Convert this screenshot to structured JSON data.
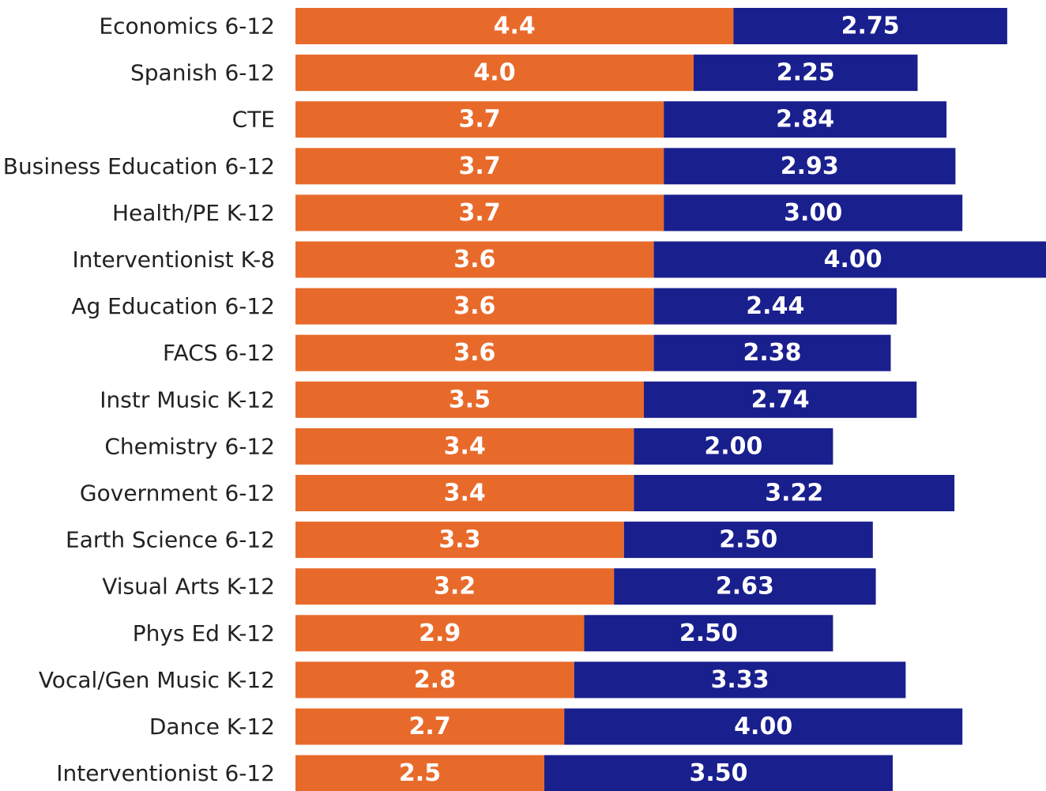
{
  "chart_data": {
    "type": "bar",
    "orientation": "horizontal",
    "stacked": true,
    "categories": [
      "Economics 6-12",
      "Spanish 6-12",
      "CTE",
      "Business Education 6-12",
      "Health/PE K-12",
      "Interventionist K-8",
      "Ag Education 6-12",
      "FACS 6-12",
      "Instr Music K-12",
      "Chemistry 6-12",
      "Government 6-12",
      "Earth Science 6-12",
      "Visual Arts K-12",
      "Phys Ed K-12",
      "Vocal/Gen Music K-12",
      "Dance K-12",
      "Interventionist 6-12"
    ],
    "series": [
      {
        "color": "#E86A2B",
        "values": [
          4.4,
          4.0,
          3.7,
          3.7,
          3.7,
          3.6,
          3.6,
          3.6,
          3.5,
          3.4,
          3.4,
          3.3,
          3.2,
          2.9,
          2.8,
          2.7,
          2.5
        ],
        "labels": [
          "4.4",
          "4.0",
          "3.7",
          "3.7",
          "3.7",
          "3.6",
          "3.6",
          "3.6",
          "3.5",
          "3.4",
          "3.4",
          "3.3",
          "3.2",
          "2.9",
          "2.8",
          "2.7",
          "2.5"
        ]
      },
      {
        "color": "#1A1F8E",
        "values": [
          2.75,
          2.25,
          2.84,
          2.93,
          3.0,
          4.0,
          2.44,
          2.38,
          2.74,
          2.0,
          3.22,
          2.5,
          2.63,
          2.5,
          3.33,
          4.0,
          3.5
        ],
        "labels": [
          "2.75",
          "2.25",
          "2.84",
          "2.93",
          "3.00",
          "4.00",
          "2.44",
          "2.38",
          "2.74",
          "2.00",
          "3.22",
          "2.50",
          "2.63",
          "2.50",
          "3.33",
          "4.00",
          "3.50"
        ]
      }
    ],
    "grid": false,
    "legend": "none"
  }
}
